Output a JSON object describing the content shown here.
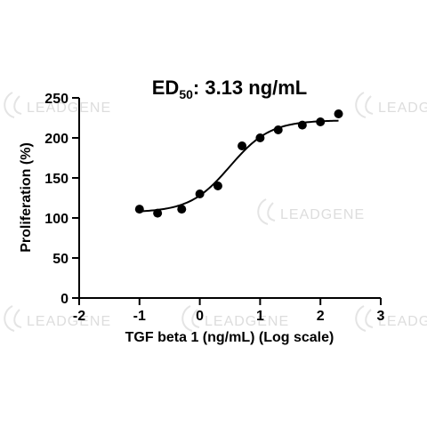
{
  "watermark": {
    "text": "LEADGENE"
  },
  "chart_data": {
    "type": "scatter",
    "title": {
      "prefix": "ED",
      "subscript": "50",
      "suffix": ": 3.13 ng/mL"
    },
    "xlabel": "TGF beta 1 (ng/mL) (Log scale)",
    "ylabel": "Proliferation (%)",
    "xlim": [
      -2,
      3
    ],
    "ylim": [
      0,
      250
    ],
    "xticks": [
      -2,
      -1,
      0,
      1,
      2,
      3
    ],
    "yticks": [
      0,
      50,
      100,
      150,
      200,
      250
    ],
    "grid": false,
    "legend": "none",
    "series": [
      {
        "points": [
          {
            "x": -1.0,
            "y": 111
          },
          {
            "x": -0.7,
            "y": 106
          },
          {
            "x": -0.3,
            "y": 111
          },
          {
            "x": 0.0,
            "y": 130
          },
          {
            "x": 0.3,
            "y": 140
          },
          {
            "x": 0.7,
            "y": 190
          },
          {
            "x": 1.0,
            "y": 200
          },
          {
            "x": 1.3,
            "y": 210
          },
          {
            "x": 1.7,
            "y": 216
          },
          {
            "x": 2.0,
            "y": 220
          },
          {
            "x": 2.3,
            "y": 230
          }
        ]
      }
    ],
    "fit_curve": {
      "bottom": 107,
      "top": 222,
      "log_ec50": 0.5,
      "hill_slope": 1.3,
      "x_range": [
        -1.0,
        2.3
      ]
    }
  }
}
